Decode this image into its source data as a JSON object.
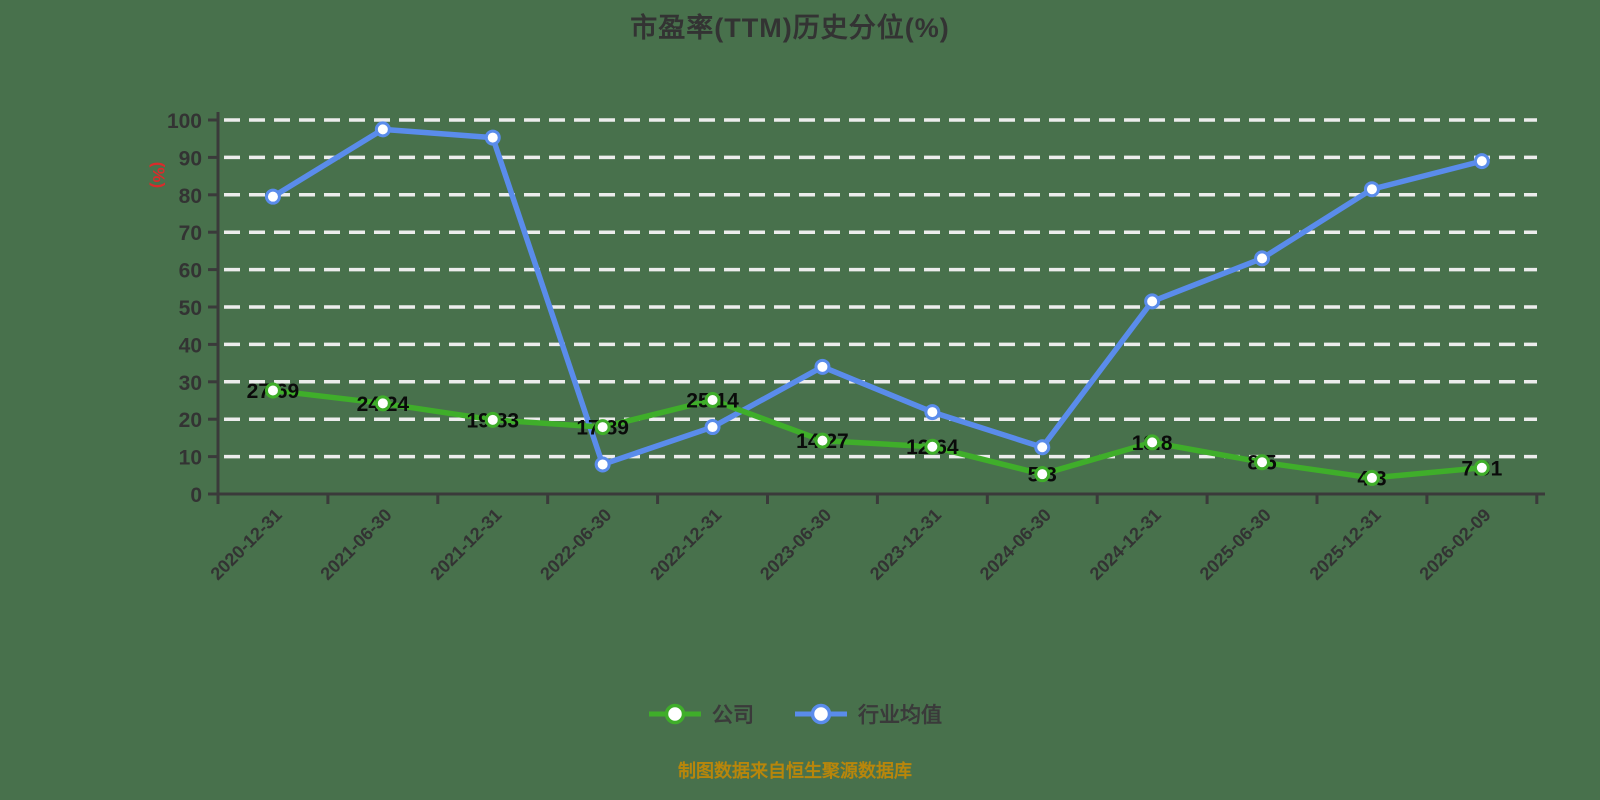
{
  "title": "市盈率(TTM)历史分位(%)",
  "source_note": "制图数据来自恒生聚源数据库",
  "colors": {
    "background": "#48714c",
    "company_green": "#3fae2a",
    "industry_blue": "#5a8ceb",
    "gridline": "#ececec",
    "axis": "#3a3a3a",
    "tick_label": "#333333",
    "data_label": "#0a0a0a",
    "y_unit_red": "#d92b2b",
    "source_gold": "#b8860b"
  },
  "legend": {
    "position": "bottom",
    "items": [
      {
        "label": "公司",
        "color": "#3fae2a"
      },
      {
        "label": "行业均值",
        "color": "#5a8ceb"
      }
    ]
  },
  "y_axis": {
    "unit_label": "(%)",
    "tick_labels": [
      "0",
      "10",
      "20",
      "30",
      "40",
      "50",
      "60",
      "70",
      "80",
      "90",
      "100"
    ]
  },
  "chart_data": {
    "type": "line",
    "title": "市盈率(TTM)历史分位(%)",
    "xlabel": "",
    "ylabel": "(%)",
    "ylim": [
      0,
      100
    ],
    "y_tick_step": 10,
    "grid": "horizontal white dashed lines",
    "legend_position": "bottom",
    "categories": [
      "2020-12-31",
      "2021-06-30",
      "2021-12-31",
      "2022-06-30",
      "2022-12-31",
      "2023-06-30",
      "2023-12-31",
      "2024-06-30",
      "2024-12-31",
      "2025-06-30",
      "2025-12-31",
      "2026-02-09"
    ],
    "series": [
      {
        "name": "公司",
        "color": "#3fae2a",
        "values": [
          27.69,
          24.24,
          19.83,
          17.89,
          25.14,
          14.27,
          12.64,
          5.3,
          13.8,
          8.5,
          4.3,
          7.01
        ],
        "point_labels": [
          "27.69",
          "24.24",
          "19.83",
          "17.89",
          "25.14",
          "14.27",
          "12.64",
          "5.3",
          "13.8",
          "8.5",
          "4.3",
          "7.01"
        ],
        "labels_shown": true
      },
      {
        "name": "行业均值",
        "color": "#5a8ceb",
        "values": [
          79.5,
          97.5,
          95.3,
          7.9,
          17.9,
          34.0,
          21.9,
          12.5,
          51.5,
          63.0,
          81.5,
          89.0
        ],
        "point_labels": [],
        "labels_shown": false
      }
    ]
  }
}
